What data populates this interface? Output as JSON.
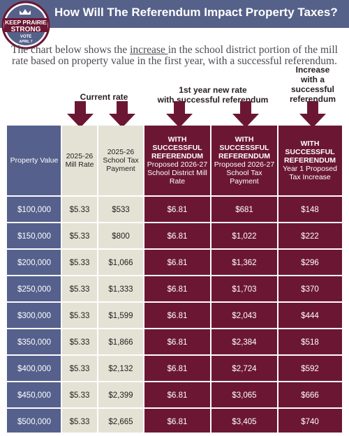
{
  "header": {
    "title": "How Will The Referendum Impact Property Taxes?"
  },
  "logo": {
    "line1": "KEEP PRAIRIE",
    "line2": "STRONG",
    "line3": "VOTE",
    "line4": "APRIL 7"
  },
  "intro": {
    "before": "The chart below shows the ",
    "underlined": "increase ",
    "after": "in the school district portion of the mill rate based on property value in the first year, with a successful referendum."
  },
  "column_labels": {
    "current": "Current rate",
    "new_rate_line1": "1st year new rate",
    "new_rate_line2": "with successful referendum",
    "increase_line1": "Increase",
    "increase_line2": "with a",
    "increase_line3": "successful",
    "increase_line4": "referendum"
  },
  "table": {
    "headers": [
      {
        "bold": "",
        "text": "Property Value"
      },
      {
        "bold": "",
        "text": "2025-26 Mill Rate"
      },
      {
        "bold": "",
        "text": "2025-26 School Tax Payment"
      },
      {
        "bold": "WITH SUCCESSFUL REFERENDUM",
        "text": "Proposed 2026-27 School District Mill Rate"
      },
      {
        "bold": "WITH SUCCESSFUL REFERENDUM",
        "text": "Proposed 2026-27 School Tax Payment"
      },
      {
        "bold": "WITH SUCCESSFUL REFERENDUM",
        "text": "Year 1 Proposed Tax Increase"
      }
    ],
    "rows": [
      [
        "$100,000",
        "$5.33",
        "$533",
        "$6.81",
        "$681",
        "$148"
      ],
      [
        "$150,000",
        "$5.33",
        "$800",
        "$6.81",
        "$1,022",
        "$222"
      ],
      [
        "$200,000",
        "$5.33",
        "$1,066",
        "$6.81",
        "$1,362",
        "$296"
      ],
      [
        "$250,000",
        "$5.33",
        "$1,333",
        "$6.81",
        "$1,703",
        "$370"
      ],
      [
        "$300,000",
        "$5.33",
        "$1,599",
        "$6.81",
        "$2,043",
        "$444"
      ],
      [
        "$350,000",
        "$5.33",
        "$1,866",
        "$6.81",
        "$2,384",
        "$518"
      ],
      [
        "$400,000",
        "$5.33",
        "$2,132",
        "$6.81",
        "$2,724",
        "$592"
      ],
      [
        "$450,000",
        "$5.33",
        "$2,399",
        "$6.81",
        "$3,065",
        "$666"
      ],
      [
        "$500,000",
        "$5.33",
        "$2,665",
        "$6.81",
        "$3,405",
        "$740"
      ]
    ]
  },
  "colors": {
    "header_bg": "#56618a",
    "property_col": "#55608c",
    "current_cols": "#e3e2d4",
    "referendum_cols": "#6b1733",
    "arrow": "#6b1733"
  }
}
